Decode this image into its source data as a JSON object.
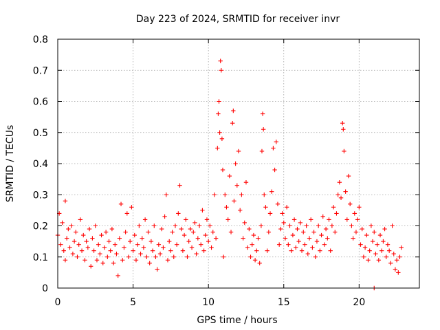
{
  "chart_data": {
    "type": "scatter",
    "title": "Day 223 of 2024, SRMTID for receiver invr",
    "xlabel": "GPS time / hours",
    "ylabel": "SRMTID / TECUs",
    "xlim": [
      0,
      24
    ],
    "ylim": [
      0,
      0.8
    ],
    "xticks": [
      0,
      5,
      10,
      15,
      20
    ],
    "xtick_labels": [
      "0",
      "5",
      "10",
      "15",
      "20"
    ],
    "yticks": [
      0,
      0.1,
      0.2,
      0.3,
      0.4,
      0.5,
      0.6,
      0.7,
      0.8
    ],
    "ytick_labels": [
      "0",
      "0.1",
      "0.2",
      "0.3",
      "0.4",
      "0.5",
      "0.6",
      "0.7",
      "0.8"
    ],
    "grid": true,
    "marker": "+",
    "color": "#ff0000",
    "series": [
      {
        "name": "SRMTID",
        "points": [
          [
            0.0,
            0.17
          ],
          [
            0.1,
            0.24
          ],
          [
            0.2,
            0.14
          ],
          [
            0.3,
            0.21
          ],
          [
            0.4,
            0.12
          ],
          [
            0.5,
            0.28
          ],
          [
            0.5,
            0.09
          ],
          [
            0.6,
            0.16
          ],
          [
            0.7,
            0.19
          ],
          [
            0.8,
            0.13
          ],
          [
            0.9,
            0.2
          ],
          [
            1.0,
            0.11
          ],
          [
            1.1,
            0.15
          ],
          [
            1.2,
            0.18
          ],
          [
            1.3,
            0.1
          ],
          [
            1.4,
            0.14
          ],
          [
            1.5,
            0.22
          ],
          [
            1.6,
            0.12
          ],
          [
            1.7,
            0.17
          ],
          [
            1.8,
            0.09
          ],
          [
            1.9,
            0.15
          ],
          [
            2.0,
            0.13
          ],
          [
            2.1,
            0.19
          ],
          [
            2.2,
            0.07
          ],
          [
            2.3,
            0.16
          ],
          [
            2.4,
            0.12
          ],
          [
            2.5,
            0.2
          ],
          [
            2.6,
            0.09
          ],
          [
            2.7,
            0.14
          ],
          [
            2.8,
            0.11
          ],
          [
            2.9,
            0.17
          ],
          [
            3.0,
            0.08
          ],
          [
            3.1,
            0.13
          ],
          [
            3.2,
            0.18
          ],
          [
            3.3,
            0.1
          ],
          [
            3.4,
            0.15
          ],
          [
            3.5,
            0.12
          ],
          [
            3.6,
            0.19
          ],
          [
            3.7,
            0.08
          ],
          [
            3.8,
            0.14
          ],
          [
            3.9,
            0.11
          ],
          [
            4.0,
            0.04
          ],
          [
            4.1,
            0.16
          ],
          [
            4.2,
            0.27
          ],
          [
            4.3,
            0.09
          ],
          [
            4.4,
            0.13
          ],
          [
            4.5,
            0.18
          ],
          [
            4.6,
            0.24
          ],
          [
            4.7,
            0.1
          ],
          [
            4.8,
            0.15
          ],
          [
            4.9,
            0.26
          ],
          [
            5.0,
            0.12
          ],
          [
            5.1,
            0.17
          ],
          [
            5.2,
            0.09
          ],
          [
            5.3,
            0.14
          ],
          [
            5.4,
            0.2
          ],
          [
            5.5,
            0.11
          ],
          [
            5.6,
            0.16
          ],
          [
            5.7,
            0.13
          ],
          [
            5.8,
            0.22
          ],
          [
            5.9,
            0.1
          ],
          [
            6.0,
            0.18
          ],
          [
            6.1,
            0.08
          ],
          [
            6.2,
            0.15
          ],
          [
            6.3,
            0.12
          ],
          [
            6.4,
            0.2
          ],
          [
            6.5,
            0.1
          ],
          [
            6.6,
            0.06
          ],
          [
            6.7,
            0.14
          ],
          [
            6.8,
            0.11
          ],
          [
            6.9,
            0.19
          ],
          [
            7.0,
            0.13
          ],
          [
            7.1,
            0.23
          ],
          [
            7.2,
            0.3
          ],
          [
            7.3,
            0.09
          ],
          [
            7.4,
            0.15
          ],
          [
            7.5,
            0.12
          ],
          [
            7.6,
            0.18
          ],
          [
            7.7,
            0.1
          ],
          [
            7.8,
            0.2
          ],
          [
            7.9,
            0.14
          ],
          [
            8.0,
            0.24
          ],
          [
            8.1,
            0.33
          ],
          [
            8.2,
            0.19
          ],
          [
            8.3,
            0.12
          ],
          [
            8.4,
            0.17
          ],
          [
            8.5,
            0.22
          ],
          [
            8.6,
            0.1
          ],
          [
            8.7,
            0.15
          ],
          [
            8.8,
            0.19
          ],
          [
            8.9,
            0.13
          ],
          [
            9.0,
            0.18
          ],
          [
            9.1,
            0.21
          ],
          [
            9.2,
            0.11
          ],
          [
            9.3,
            0.16
          ],
          [
            9.4,
            0.2
          ],
          [
            9.5,
            0.14
          ],
          [
            9.6,
            0.25
          ],
          [
            9.7,
            0.12
          ],
          [
            9.8,
            0.17
          ],
          [
            9.9,
            0.22
          ],
          [
            10.0,
            0.15
          ],
          [
            10.1,
            0.2
          ],
          [
            10.2,
            0.13
          ],
          [
            10.3,
            0.18
          ],
          [
            10.4,
            0.3
          ],
          [
            10.5,
            0.16
          ],
          [
            10.6,
            0.45
          ],
          [
            10.65,
            0.56
          ],
          [
            10.7,
            0.6
          ],
          [
            10.75,
            0.5
          ],
          [
            10.8,
            0.73
          ],
          [
            10.85,
            0.7
          ],
          [
            10.9,
            0.48
          ],
          [
            10.95,
            0.38
          ],
          [
            11.0,
            0.1
          ],
          [
            11.1,
            0.3
          ],
          [
            11.2,
            0.26
          ],
          [
            11.3,
            0.22
          ],
          [
            11.4,
            0.36
          ],
          [
            11.5,
            0.18
          ],
          [
            11.6,
            0.53
          ],
          [
            11.65,
            0.57
          ],
          [
            11.7,
            0.28
          ],
          [
            11.8,
            0.4
          ],
          [
            11.9,
            0.33
          ],
          [
            12.0,
            0.44
          ],
          [
            12.1,
            0.25
          ],
          [
            12.2,
            0.3
          ],
          [
            12.3,
            0.16
          ],
          [
            12.4,
            0.21
          ],
          [
            12.5,
            0.34
          ],
          [
            12.6,
            0.13
          ],
          [
            12.7,
            0.19
          ],
          [
            12.8,
            0.1
          ],
          [
            12.9,
            0.14
          ],
          [
            13.0,
            0.17
          ],
          [
            13.1,
            0.09
          ],
          [
            13.2,
            0.12
          ],
          [
            13.3,
            0.16
          ],
          [
            13.4,
            0.08
          ],
          [
            13.5,
            0.2
          ],
          [
            13.55,
            0.44
          ],
          [
            13.6,
            0.56
          ],
          [
            13.65,
            0.51
          ],
          [
            13.7,
            0.3
          ],
          [
            13.8,
            0.26
          ],
          [
            13.9,
            0.12
          ],
          [
            14.0,
            0.18
          ],
          [
            14.1,
            0.24
          ],
          [
            14.2,
            0.31
          ],
          [
            14.3,
            0.45
          ],
          [
            14.4,
            0.38
          ],
          [
            14.5,
            0.47
          ],
          [
            14.6,
            0.27
          ],
          [
            14.7,
            0.14
          ],
          [
            14.8,
            0.19
          ],
          [
            14.9,
            0.24
          ],
          [
            15.0,
            0.21
          ],
          [
            15.1,
            0.16
          ],
          [
            15.2,
            0.26
          ],
          [
            15.3,
            0.14
          ],
          [
            15.4,
            0.2
          ],
          [
            15.5,
            0.12
          ],
          [
            15.6,
            0.17
          ],
          [
            15.7,
            0.22
          ],
          [
            15.8,
            0.13
          ],
          [
            15.9,
            0.19
          ],
          [
            16.0,
            0.15
          ],
          [
            16.1,
            0.21
          ],
          [
            16.2,
            0.12
          ],
          [
            16.3,
            0.18
          ],
          [
            16.4,
            0.14
          ],
          [
            16.5,
            0.2
          ],
          [
            16.6,
            0.11
          ],
          [
            16.7,
            0.16
          ],
          [
            16.8,
            0.22
          ],
          [
            16.9,
            0.13
          ],
          [
            17.0,
            0.18
          ],
          [
            17.1,
            0.1
          ],
          [
            17.2,
            0.15
          ],
          [
            17.3,
            0.2
          ],
          [
            17.4,
            0.12
          ],
          [
            17.5,
            0.17
          ],
          [
            17.6,
            0.23
          ],
          [
            17.7,
            0.14
          ],
          [
            17.8,
            0.19
          ],
          [
            17.9,
            0.16
          ],
          [
            18.0,
            0.22
          ],
          [
            18.1,
            0.12
          ],
          [
            18.2,
            0.2
          ],
          [
            18.3,
            0.26
          ],
          [
            18.4,
            0.18
          ],
          [
            18.5,
            0.24
          ],
          [
            18.6,
            0.3
          ],
          [
            18.7,
            0.34
          ],
          [
            18.8,
            0.29
          ],
          [
            18.9,
            0.53
          ],
          [
            18.95,
            0.51
          ],
          [
            19.0,
            0.44
          ],
          [
            19.1,
            0.31
          ],
          [
            19.2,
            0.22
          ],
          [
            19.3,
            0.36
          ],
          [
            19.4,
            0.27
          ],
          [
            19.5,
            0.2
          ],
          [
            19.6,
            0.16
          ],
          [
            19.7,
            0.24
          ],
          [
            19.8,
            0.18
          ],
          [
            19.9,
            0.22
          ],
          [
            20.0,
            0.26
          ],
          [
            20.1,
            0.14
          ],
          [
            20.2,
            0.19
          ],
          [
            20.3,
            0.1
          ],
          [
            20.4,
            0.13
          ],
          [
            20.5,
            0.17
          ],
          [
            20.6,
            0.09
          ],
          [
            20.7,
            0.12
          ],
          [
            20.8,
            0.2
          ],
          [
            20.9,
            0.15
          ],
          [
            21.0,
            0.0
          ],
          [
            21.0,
            0.18
          ],
          [
            21.1,
            0.11
          ],
          [
            21.2,
            0.14
          ],
          [
            21.3,
            0.09
          ],
          [
            21.4,
            0.17
          ],
          [
            21.5,
            0.12
          ],
          [
            21.6,
            0.15
          ],
          [
            21.7,
            0.19
          ],
          [
            21.8,
            0.1
          ],
          [
            21.9,
            0.14
          ],
          [
            22.0,
            0.12
          ],
          [
            22.1,
            0.08
          ],
          [
            22.2,
            0.2
          ],
          [
            22.3,
            0.11
          ],
          [
            22.4,
            0.06
          ],
          [
            22.5,
            0.09
          ],
          [
            22.6,
            0.05
          ],
          [
            22.7,
            0.1
          ],
          [
            22.8,
            0.13
          ]
        ]
      }
    ]
  }
}
